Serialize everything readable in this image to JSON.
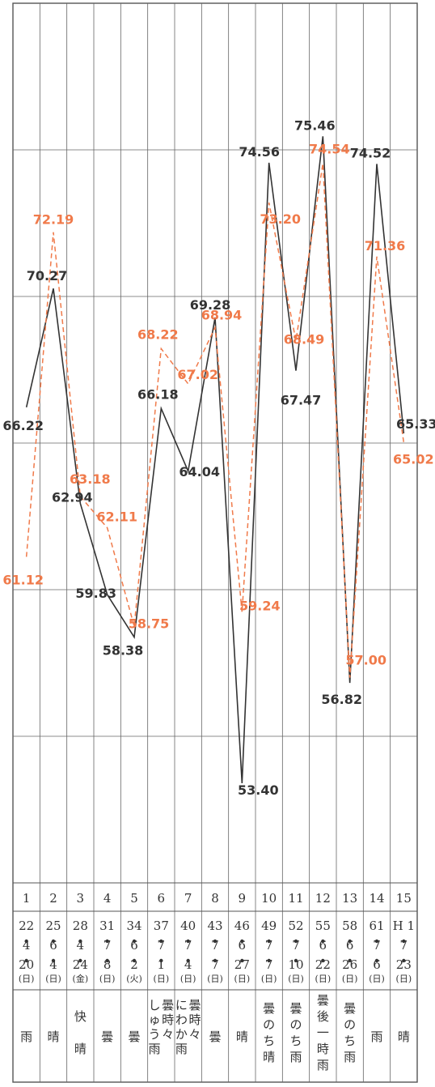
{
  "chart_data": {
    "type": "line",
    "x": [
      "1",
      "2",
      "3",
      "4",
      "5",
      "6",
      "7",
      "8",
      "9",
      "10",
      "11",
      "12",
      "13",
      "14",
      "15"
    ],
    "series": [
      {
        "values": [
          66.22,
          70.27,
          62.94,
          59.83,
          58.38,
          66.18,
          64.04,
          69.28,
          53.4,
          74.56,
          67.47,
          75.46,
          56.82,
          74.52,
          65.33
        ],
        "color": "#333333",
        "style": "solid"
      },
      {
        "values": [
          61.12,
          72.19,
          63.18,
          62.11,
          58.75,
          68.22,
          67.02,
          68.94,
          59.24,
          73.2,
          68.49,
          74.54,
          57.0,
          71.36,
          65.02
        ],
        "color": "#f07a4a",
        "style": "dashed"
      }
    ],
    "labels_black": [
      "66.22",
      "70.27",
      "62.94",
      "59.83",
      "58.38",
      "66.18",
      "64.04",
      "69.28",
      "53.40",
      "74.56",
      "67.47",
      "75.46",
      "56.82",
      "74.52",
      "65.33"
    ],
    "labels_orange": [
      "61.12",
      "72.19",
      "63.18",
      "62.11",
      "58.75",
      "68.22",
      "67.02",
      "68.94",
      "59.24",
      "73.20",
      "68.49",
      "74.54",
      "57.00",
      "71.36",
      "65.02"
    ],
    "ylim": [
      50,
      80
    ],
    "grid": true
  },
  "table": {
    "numbers": [
      "1",
      "2",
      "3",
      "4",
      "5",
      "6",
      "7",
      "8",
      "9",
      "10",
      "11",
      "12",
      "13",
      "14",
      "15"
    ],
    "dates": [
      [
        "22",
        "4",
        "20",
        "(日)"
      ],
      [
        "25",
        "6",
        "4",
        "(日)"
      ],
      [
        "28",
        "4",
        "24",
        "(金)"
      ],
      [
        "31",
        "7",
        "8",
        "(日)"
      ],
      [
        "34",
        "6",
        "2",
        "(火)"
      ],
      [
        "37",
        "7",
        "1",
        "(日)"
      ],
      [
        "40",
        "7",
        "4",
        "(日)"
      ],
      [
        "43",
        "7",
        "7",
        "(日)"
      ],
      [
        "46",
        "6",
        "27",
        "(日)"
      ],
      [
        "49",
        "7",
        "7",
        "(日)"
      ],
      [
        "52",
        "7",
        "10",
        "(日)"
      ],
      [
        "55",
        "6",
        "22",
        "(日)"
      ],
      [
        "58",
        "6",
        "26",
        "(日)"
      ],
      [
        "61",
        "7",
        "6",
        "(日)"
      ],
      [
        "H 1",
        "7",
        "23",
        "(日)"
      ]
    ],
    "weather": [
      [
        "雨"
      ],
      [
        "晴"
      ],
      [
        "快",
        "晴"
      ],
      [
        "曇"
      ],
      [
        "曇"
      ],
      [
        "曇時々",
        "しゅう雨"
      ],
      [
        "曇時々",
        "にわか雨"
      ],
      [
        "曇"
      ],
      [
        "晴"
      ],
      [
        "曇のち晴"
      ],
      [
        "曇のち雨"
      ],
      [
        "曇後一時雨"
      ],
      [
        "曇のち雨"
      ],
      [
        "雨"
      ],
      [
        "晴"
      ]
    ]
  }
}
